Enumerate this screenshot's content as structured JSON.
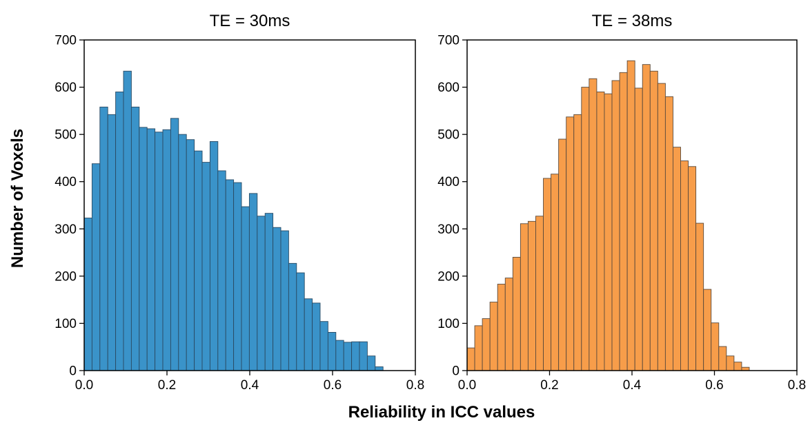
{
  "figure": {
    "ylabel": "Number of Voxels",
    "xlabel": "Reliability in ICC values"
  },
  "chart_data": [
    {
      "type": "bar",
      "title": "TE = 30ms",
      "color": "#3a93c9",
      "edge_color": "#2a4a63",
      "xlim": [
        0.0,
        0.8
      ],
      "ylim": [
        0,
        700
      ],
      "xticks": [
        "0.0",
        "0.2",
        "0.4",
        "0.6",
        "0.8"
      ],
      "yticks": [
        "0",
        "100",
        "200",
        "300",
        "400",
        "500",
        "600",
        "700"
      ],
      "bin_width": 0.019,
      "bin_start": 0.0,
      "values": [
        323,
        438,
        558,
        542,
        590,
        634,
        558,
        515,
        512,
        505,
        510,
        534,
        500,
        489,
        465,
        441,
        485,
        423,
        404,
        398,
        347,
        375,
        327,
        333,
        303,
        296,
        227,
        207,
        152,
        143,
        104,
        81,
        64,
        60,
        61,
        61,
        31,
        8
      ]
    },
    {
      "type": "bar",
      "title": "TE = 38ms",
      "color": "#f79d4a",
      "edge_color": "#5a4a3c",
      "xlim": [
        0.0,
        0.8
      ],
      "ylim": [
        0,
        700
      ],
      "xticks": [
        "0.0",
        "0.2",
        "0.4",
        "0.6",
        "0.8"
      ],
      "yticks": [
        "0",
        "100",
        "200",
        "300",
        "400",
        "500",
        "600",
        "700"
      ],
      "bin_width": 0.0185,
      "bin_start": 0.0,
      "values": [
        48,
        95,
        110,
        145,
        183,
        196,
        240,
        311,
        316,
        327,
        407,
        416,
        490,
        537,
        542,
        600,
        618,
        590,
        586,
        614,
        631,
        656,
        598,
        648,
        634,
        608,
        580,
        473,
        444,
        432,
        312,
        172,
        101,
        51,
        31,
        18,
        7
      ]
    }
  ]
}
